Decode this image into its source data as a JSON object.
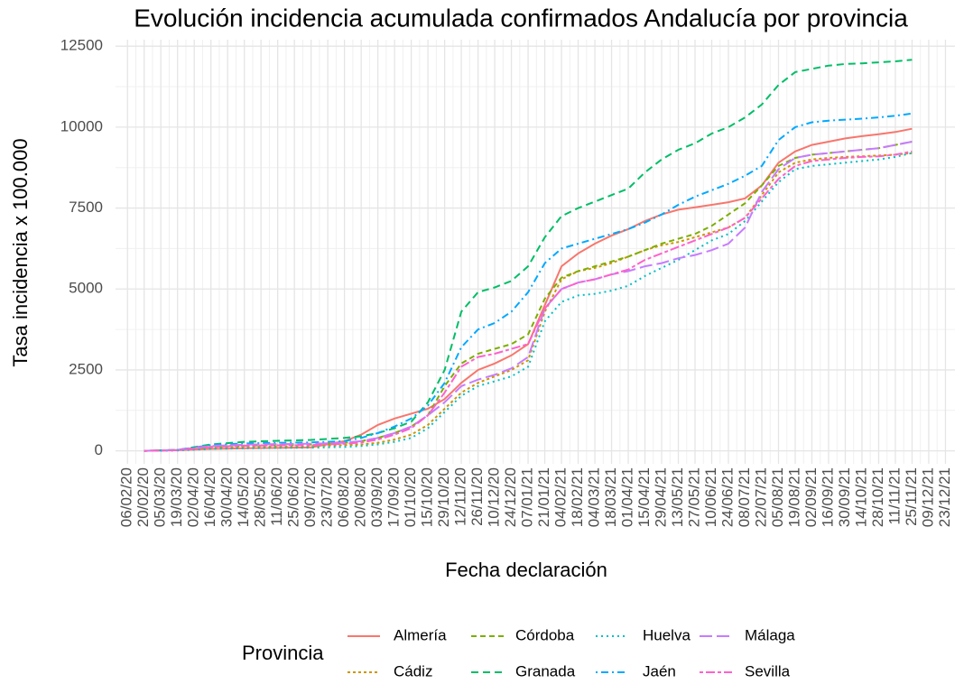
{
  "chart_data": {
    "type": "line",
    "title": "Evolución incidencia acumulada confirmados Andalucía por provincia",
    "x_label": "Fecha declaración",
    "y_label": "Tasa incidencia x 100.000",
    "legend_title": "Provincia",
    "grid": true,
    "legend": "bottom",
    "xlim": [
      "2020-01-27",
      "2021-12-31"
    ],
    "ylim": [
      -400,
      12700
    ],
    "yticks": [
      0,
      2500,
      5000,
      7500,
      10000,
      12500
    ],
    "xticks": [
      {
        "value": "2020-02-06",
        "label": "06/02/20"
      },
      {
        "value": "2020-02-20",
        "label": "20/02/20"
      },
      {
        "value": "2020-03-05",
        "label": "05/03/20"
      },
      {
        "value": "2020-03-19",
        "label": "19/03/20"
      },
      {
        "value": "2020-04-02",
        "label": "02/04/20"
      },
      {
        "value": "2020-04-16",
        "label": "16/04/20"
      },
      {
        "value": "2020-04-30",
        "label": "30/04/20"
      },
      {
        "value": "2020-05-14",
        "label": "14/05/20"
      },
      {
        "value": "2020-05-28",
        "label": "28/05/20"
      },
      {
        "value": "2020-06-11",
        "label": "11/06/20"
      },
      {
        "value": "2020-06-25",
        "label": "25/06/20"
      },
      {
        "value": "2020-07-09",
        "label": "09/07/20"
      },
      {
        "value": "2020-07-23",
        "label": "23/07/20"
      },
      {
        "value": "2020-08-06",
        "label": "06/08/20"
      },
      {
        "value": "2020-08-20",
        "label": "20/08/20"
      },
      {
        "value": "2020-09-03",
        "label": "03/09/20"
      },
      {
        "value": "2020-09-17",
        "label": "17/09/20"
      },
      {
        "value": "2020-10-01",
        "label": "01/10/20"
      },
      {
        "value": "2020-10-15",
        "label": "15/10/20"
      },
      {
        "value": "2020-10-29",
        "label": "29/10/20"
      },
      {
        "value": "2020-11-12",
        "label": "12/11/20"
      },
      {
        "value": "2020-11-26",
        "label": "26/11/20"
      },
      {
        "value": "2020-12-10",
        "label": "10/12/20"
      },
      {
        "value": "2020-12-24",
        "label": "24/12/20"
      },
      {
        "value": "2021-01-07",
        "label": "07/01/21"
      },
      {
        "value": "2021-01-21",
        "label": "21/01/21"
      },
      {
        "value": "2021-02-04",
        "label": "04/02/21"
      },
      {
        "value": "2021-02-18",
        "label": "18/02/21"
      },
      {
        "value": "2021-03-04",
        "label": "04/03/21"
      },
      {
        "value": "2021-03-18",
        "label": "18/03/21"
      },
      {
        "value": "2021-04-01",
        "label": "01/04/21"
      },
      {
        "value": "2021-04-15",
        "label": "15/04/21"
      },
      {
        "value": "2021-04-29",
        "label": "29/04/21"
      },
      {
        "value": "2021-05-13",
        "label": "13/05/21"
      },
      {
        "value": "2021-05-27",
        "label": "27/05/21"
      },
      {
        "value": "2021-06-10",
        "label": "10/06/21"
      },
      {
        "value": "2021-06-24",
        "label": "24/06/21"
      },
      {
        "value": "2021-07-08",
        "label": "08/07/21"
      },
      {
        "value": "2021-07-22",
        "label": "22/07/21"
      },
      {
        "value": "2021-08-05",
        "label": "05/08/21"
      },
      {
        "value": "2021-08-19",
        "label": "19/08/21"
      },
      {
        "value": "2021-09-02",
        "label": "02/09/21"
      },
      {
        "value": "2021-09-16",
        "label": "16/09/21"
      },
      {
        "value": "2021-09-30",
        "label": "30/09/21"
      },
      {
        "value": "2021-10-14",
        "label": "14/10/21"
      },
      {
        "value": "2021-10-28",
        "label": "28/10/21"
      },
      {
        "value": "2021-11-11",
        "label": "11/11/21"
      },
      {
        "value": "2021-11-25",
        "label": "25/11/21"
      },
      {
        "value": "2021-12-09",
        "label": "09/12/21"
      },
      {
        "value": "2021-12-23",
        "label": "23/12/21"
      }
    ],
    "x": [
      "2020-02-20",
      "2020-03-19",
      "2020-04-16",
      "2020-05-14",
      "2020-06-11",
      "2020-07-09",
      "2020-08-06",
      "2020-08-20",
      "2020-09-03",
      "2020-09-17",
      "2020-10-01",
      "2020-10-15",
      "2020-10-29",
      "2020-11-12",
      "2020-11-26",
      "2020-12-10",
      "2020-12-24",
      "2021-01-07",
      "2021-01-21",
      "2021-02-04",
      "2021-02-18",
      "2021-03-04",
      "2021-03-18",
      "2021-04-01",
      "2021-04-15",
      "2021-04-29",
      "2021-05-13",
      "2021-05-27",
      "2021-06-10",
      "2021-06-24",
      "2021-07-08",
      "2021-07-22",
      "2021-08-05",
      "2021-08-19",
      "2021-09-02",
      "2021-09-16",
      "2021-09-30",
      "2021-10-14",
      "2021-10-28",
      "2021-11-11",
      "2021-11-25"
    ],
    "series": [
      {
        "name": "Almería",
        "color": "#F8766D",
        "dash": "none",
        "values": [
          0,
          20,
          60,
          80,
          90,
          110,
          300,
          500,
          800,
          1000,
          1150,
          1300,
          1600,
          2100,
          2500,
          2700,
          2950,
          3300,
          4500,
          5700,
          6100,
          6400,
          6650,
          6850,
          7100,
          7300,
          7450,
          7520,
          7600,
          7680,
          7800,
          8200,
          8900,
          9250,
          9450,
          9550,
          9650,
          9720,
          9780,
          9850,
          9950
        ]
      },
      {
        "name": "Cádiz",
        "color": "#CD9600",
        "dash": "3,3",
        "values": [
          0,
          20,
          100,
          130,
          140,
          150,
          180,
          200,
          250,
          350,
          500,
          800,
          1300,
          1800,
          2100,
          2300,
          2500,
          2800,
          4300,
          5300,
          5550,
          5650,
          5800,
          6000,
          6200,
          6350,
          6450,
          6600,
          6750,
          6900,
          7200,
          7900,
          8600,
          8900,
          9000,
          9050,
          9080,
          9100,
          9120,
          9150,
          9200
        ]
      },
      {
        "name": "Córdoba",
        "color": "#7CAE00",
        "dash": "6,4",
        "values": [
          0,
          20,
          120,
          160,
          180,
          200,
          250,
          300,
          400,
          550,
          750,
          1100,
          2000,
          2700,
          3000,
          3150,
          3300,
          3600,
          4700,
          5350,
          5550,
          5700,
          5850,
          6000,
          6200,
          6400,
          6550,
          6700,
          6950,
          7300,
          7650,
          8200,
          8800,
          9050,
          9150,
          9200,
          9250,
          9300,
          9350,
          9450,
          9550
        ]
      },
      {
        "name": "Granada",
        "color": "#00BE67",
        "dash": "8,5",
        "values": [
          0,
          30,
          200,
          280,
          310,
          340,
          400,
          450,
          550,
          700,
          900,
          1500,
          2500,
          4300,
          4900,
          5050,
          5250,
          5700,
          6600,
          7250,
          7500,
          7700,
          7900,
          8100,
          8600,
          9000,
          9300,
          9500,
          9800,
          10000,
          10300,
          10700,
          11300,
          11700,
          11800,
          11900,
          11950,
          11970,
          12000,
          12030,
          12080
        ]
      },
      {
        "name": "Huelva",
        "color": "#00BFC4",
        "dash": "2,4",
        "values": [
          0,
          10,
          60,
          80,
          90,
          100,
          120,
          150,
          200,
          280,
          400,
          700,
          1200,
          1700,
          2000,
          2150,
          2300,
          2600,
          4000,
          4600,
          4800,
          4850,
          4950,
          5100,
          5400,
          5650,
          5900,
          6200,
          6500,
          6700,
          7100,
          7700,
          8300,
          8700,
          8800,
          8850,
          8900,
          8950,
          9000,
          9080,
          9200
        ]
      },
      {
        "name": "Jaén",
        "color": "#00A9FF",
        "dash": "2,4,8,4",
        "values": [
          0,
          30,
          180,
          230,
          250,
          260,
          300,
          400,
          550,
          750,
          1000,
          1400,
          2100,
          3200,
          3750,
          3950,
          4300,
          4900,
          5800,
          6250,
          6400,
          6550,
          6700,
          6850,
          7050,
          7300,
          7600,
          7850,
          8050,
          8250,
          8500,
          8800,
          9600,
          10000,
          10150,
          10200,
          10230,
          10260,
          10300,
          10350,
          10420
        ]
      },
      {
        "name": "Málaga",
        "color": "#C77CFF",
        "dash": "14,5",
        "values": [
          0,
          30,
          150,
          190,
          210,
          220,
          250,
          300,
          400,
          550,
          750,
          1100,
          1500,
          2000,
          2200,
          2350,
          2550,
          2900,
          4400,
          5000,
          5200,
          5300,
          5450,
          5550,
          5700,
          5800,
          5950,
          6050,
          6200,
          6400,
          6900,
          8000,
          8700,
          9050,
          9150,
          9200,
          9250,
          9300,
          9350,
          9450,
          9550
        ]
      },
      {
        "name": "Sevilla",
        "color": "#FF61CC",
        "dash": "4,3,10,3",
        "values": [
          0,
          20,
          120,
          160,
          170,
          180,
          220,
          260,
          350,
          500,
          700,
          1100,
          1800,
          2600,
          2900,
          3000,
          3150,
          3300,
          4400,
          5000,
          5200,
          5300,
          5450,
          5600,
          5900,
          6100,
          6300,
          6500,
          6700,
          6900,
          7200,
          7800,
          8400,
          8800,
          8950,
          9000,
          9050,
          9080,
          9100,
          9150,
          9250
        ]
      }
    ]
  }
}
